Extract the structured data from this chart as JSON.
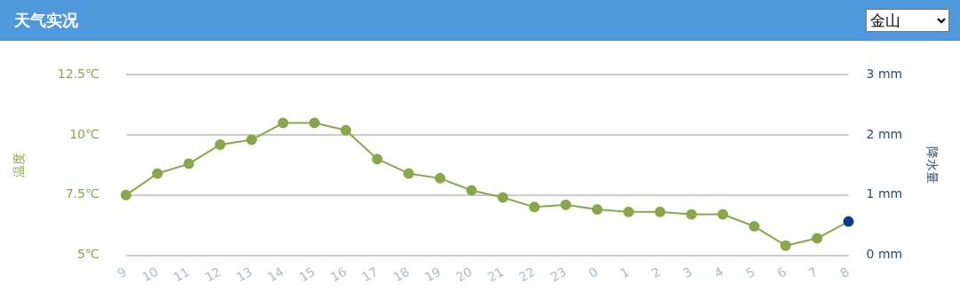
{
  "chart_data": {
    "type": "line",
    "title": "天气实况",
    "annotations": [
      "金山"
    ],
    "categories": [
      "9",
      "10",
      "11",
      "12",
      "13",
      "14",
      "15",
      "16",
      "17",
      "18",
      "19",
      "20",
      "21",
      "22",
      "23",
      "0",
      "1",
      "2",
      "3",
      "4",
      "5",
      "6",
      "7",
      "8"
    ],
    "series": [
      {
        "color": "#8aa64a",
        "colors": [
          "#8aa64a",
          "#8aa64a",
          "#8aa64a",
          "#8aa64a",
          "#8aa64a",
          "#8aa64a",
          "#8aa64a",
          "#8aa64a",
          "#8aa64a",
          "#8aa64a",
          "#8aa64a",
          "#8aa64a",
          "#8aa64a",
          "#8aa64a",
          "#8aa64a",
          "#8aa64a",
          "#8aa64a",
          "#8aa64a",
          "#8aa64a",
          "#8aa64a",
          "#8aa64a",
          "#8aa64a",
          "#8aa64a",
          "#0a3a8c"
        ],
        "values": [
          7.5,
          8.4,
          8.8,
          9.6,
          9.8,
          10.5,
          10.5,
          10.2,
          9.0,
          8.4,
          8.2,
          7.7,
          7.4,
          7.0,
          7.1,
          6.9,
          6.8,
          6.8,
          6.7,
          6.7,
          6.2,
          5.4,
          5.7,
          6.4
        ]
      }
    ],
    "ylabel": "温度",
    "y2label": "降水量",
    "ylim": [
      5,
      12.5
    ],
    "yticks": [
      {
        "value": 5,
        "label": "5℃"
      },
      {
        "value": 7.5,
        "label": "7.5℃"
      },
      {
        "value": 10,
        "label": "10℃"
      },
      {
        "value": 12.5,
        "label": "12.5℃"
      }
    ],
    "y2lim": [
      0,
      3
    ],
    "y2ticks": [
      {
        "value": 0,
        "label": "0 mm"
      },
      {
        "value": 1,
        "label": "1 mm"
      },
      {
        "value": 2,
        "label": "2 mm"
      },
      {
        "value": 3,
        "label": "3 mm"
      }
    ],
    "grid": "y",
    "legend": false,
    "marker": "circle",
    "line_style": "solid"
  }
}
